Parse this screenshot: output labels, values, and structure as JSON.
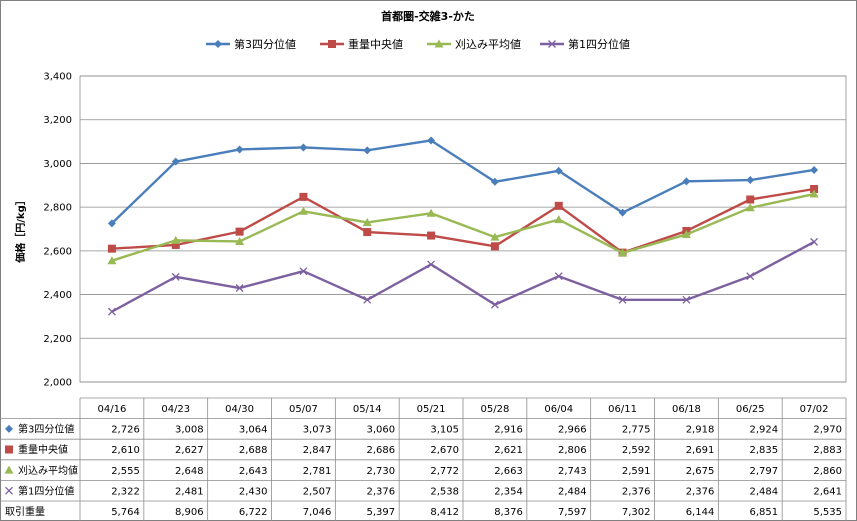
{
  "chart_data": {
    "type": "line",
    "title": "首都圏-交雑3-かた",
    "ylabel": "価格［円/kg］",
    "ylim": [
      2000,
      3400
    ],
    "ystep": 200,
    "yticks": [
      "2,000",
      "2,200",
      "2,400",
      "2,600",
      "2,800",
      "3,000",
      "3,200",
      "3,400"
    ],
    "grid": true,
    "legend": "top",
    "categories": [
      "04/16",
      "04/23",
      "04/30",
      "05/07",
      "05/14",
      "05/21",
      "05/28",
      "06/04",
      "06/11",
      "06/18",
      "06/25",
      "07/02"
    ],
    "series": [
      {
        "name": "第3四分位値",
        "color": "#4a7ebb",
        "marker": "diamond",
        "values": [
          2726,
          3008,
          3064,
          3073,
          3060,
          3105,
          2916,
          2966,
          2775,
          2918,
          2924,
          2970
        ],
        "labels": [
          "2,726",
          "3,008",
          "3,064",
          "3,073",
          "3,060",
          "3,105",
          "2,916",
          "2,966",
          "2,775",
          "2,918",
          "2,924",
          "2,970"
        ]
      },
      {
        "name": "重量中央値",
        "color": "#be4b48",
        "marker": "square",
        "values": [
          2610,
          2627,
          2688,
          2847,
          2686,
          2670,
          2621,
          2806,
          2592,
          2691,
          2835,
          2883
        ],
        "labels": [
          "2,610",
          "2,627",
          "2,688",
          "2,847",
          "2,686",
          "2,670",
          "2,621",
          "2,806",
          "2,592",
          "2,691",
          "2,835",
          "2,883"
        ]
      },
      {
        "name": "刈込み平均値",
        "color": "#98b954",
        "marker": "triangle",
        "values": [
          2555,
          2648,
          2643,
          2781,
          2730,
          2772,
          2663,
          2743,
          2591,
          2675,
          2797,
          2860
        ],
        "labels": [
          "2,555",
          "2,648",
          "2,643",
          "2,781",
          "2,730",
          "2,772",
          "2,663",
          "2,743",
          "2,591",
          "2,675",
          "2,797",
          "2,860"
        ]
      },
      {
        "name": "第1四分位値",
        "color": "#7d60a0",
        "marker": "x",
        "values": [
          2322,
          2481,
          2430,
          2507,
          2376,
          2538,
          2354,
          2484,
          2376,
          2376,
          2484,
          2641
        ],
        "labels": [
          "2,322",
          "2,481",
          "2,430",
          "2,507",
          "2,376",
          "2,538",
          "2,354",
          "2,484",
          "2,376",
          "2,376",
          "2,484",
          "2,641"
        ]
      }
    ],
    "table_extra_rows": [
      {
        "name": "取引重量",
        "labels": [
          "5,764",
          "8,906",
          "6,722",
          "7,046",
          "5,397",
          "8,412",
          "8,376",
          "7,597",
          "7,302",
          "6,144",
          "6,851",
          "5,535"
        ]
      }
    ]
  }
}
